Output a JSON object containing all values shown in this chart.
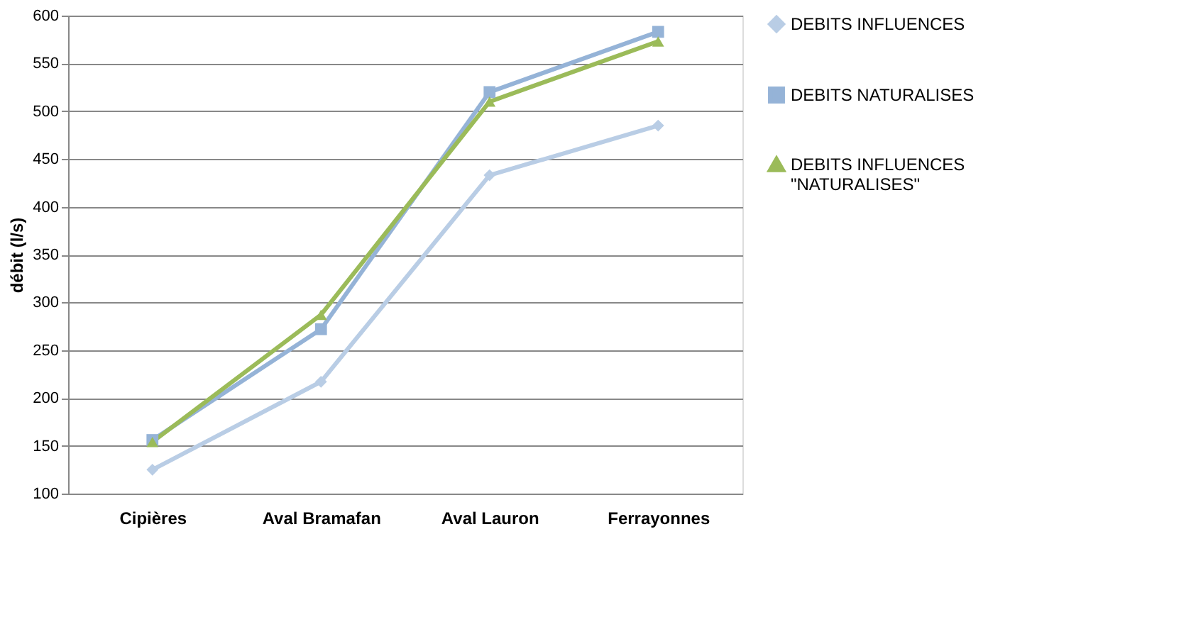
{
  "chart_data": {
    "type": "line",
    "ylabel": "débit (l/s)",
    "categories": [
      "Cipières",
      "Aval Bramafan",
      "Aval Lauron",
      "Ferrayonnes"
    ],
    "series": [
      {
        "name": "DEBITS INFLUENCES",
        "color": "#b9cde5",
        "marker": "diamond",
        "values": [
          125,
          217,
          433,
          485
        ]
      },
      {
        "name": "DEBITS NATURALISES",
        "color": "#95b3d7",
        "marker": "square",
        "values": [
          156,
          272,
          520,
          583
        ]
      },
      {
        "name": "DEBITS INFLUENCES \"NATURALISES\"",
        "color": "#9bbb59",
        "marker": "triangle",
        "values": [
          154,
          287,
          510,
          573
        ]
      }
    ],
    "ylim": [
      100,
      600
    ],
    "yticks": [
      100,
      150,
      200,
      250,
      300,
      350,
      400,
      450,
      500,
      550,
      600
    ],
    "grid": "y",
    "legend": "right"
  }
}
